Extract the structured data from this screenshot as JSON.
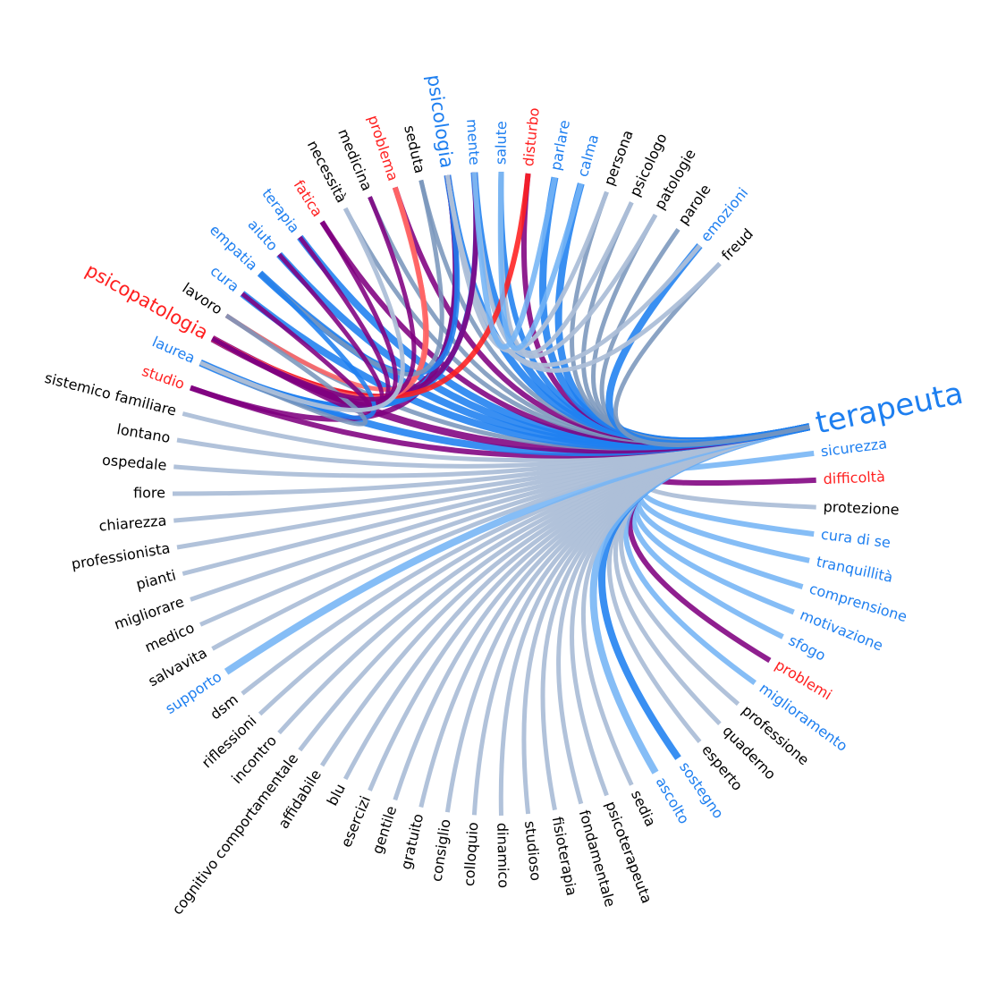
{
  "colors": {
    "positive": "#1e7ff0",
    "negative": "#ff1f1f",
    "neutral": "#000000",
    "link_light": "#adbfd8",
    "link_light_blue": "#74b4f5",
    "link_mid": "#7a96bc",
    "link_purple": "#800080",
    "link_red": "#ff6464"
  },
  "legend": [
    {
      "name": "positive",
      "color": "#1e7ff0"
    },
    {
      "name": "negative",
      "color": "#ff1f1f"
    },
    {
      "name": "neutral",
      "color": "#000000"
    }
  ],
  "chart_data": {
    "type": "chord",
    "hub": "terapeuta",
    "nodes": [
      {
        "label": "terapeuta",
        "sentiment": "positive",
        "size": "xl"
      },
      {
        "label": "sicurezza",
        "sentiment": "positive"
      },
      {
        "label": "difficoltà",
        "sentiment": "negative"
      },
      {
        "label": "protezione",
        "sentiment": "neutral"
      },
      {
        "label": "cura di se",
        "sentiment": "positive"
      },
      {
        "label": "tranquillità",
        "sentiment": "positive"
      },
      {
        "label": "comprensione",
        "sentiment": "positive"
      },
      {
        "label": "motivazione",
        "sentiment": "positive"
      },
      {
        "label": "sfogo",
        "sentiment": "positive"
      },
      {
        "label": "problemi",
        "sentiment": "negative"
      },
      {
        "label": "miglioramento",
        "sentiment": "positive"
      },
      {
        "label": "professione",
        "sentiment": "neutral"
      },
      {
        "label": "quaderno",
        "sentiment": "neutral"
      },
      {
        "label": "esperto",
        "sentiment": "neutral"
      },
      {
        "label": "sostegno",
        "sentiment": "positive"
      },
      {
        "label": "ascolto",
        "sentiment": "positive"
      },
      {
        "label": "sedia",
        "sentiment": "neutral"
      },
      {
        "label": "psicoterapeuta",
        "sentiment": "neutral"
      },
      {
        "label": "fondamentale",
        "sentiment": "neutral"
      },
      {
        "label": "fisioterapia",
        "sentiment": "neutral"
      },
      {
        "label": "studioso",
        "sentiment": "neutral"
      },
      {
        "label": "dinamico",
        "sentiment": "neutral"
      },
      {
        "label": "colloquio",
        "sentiment": "neutral"
      },
      {
        "label": "consiglio",
        "sentiment": "neutral"
      },
      {
        "label": "gratuito",
        "sentiment": "neutral"
      },
      {
        "label": "gentile",
        "sentiment": "neutral"
      },
      {
        "label": "esercizi",
        "sentiment": "neutral"
      },
      {
        "label": "blu",
        "sentiment": "neutral"
      },
      {
        "label": "affidabile",
        "sentiment": "neutral"
      },
      {
        "label": "cognitivo comportamentale",
        "sentiment": "neutral"
      },
      {
        "label": "incontro",
        "sentiment": "neutral"
      },
      {
        "label": "riflessioni",
        "sentiment": "neutral"
      },
      {
        "label": "dsm",
        "sentiment": "neutral"
      },
      {
        "label": "supporto",
        "sentiment": "positive"
      },
      {
        "label": "salvavita",
        "sentiment": "neutral"
      },
      {
        "label": "medico",
        "sentiment": "neutral"
      },
      {
        "label": "migliorare",
        "sentiment": "neutral"
      },
      {
        "label": "pianti",
        "sentiment": "neutral"
      },
      {
        "label": "professionista",
        "sentiment": "neutral"
      },
      {
        "label": "chiarezza",
        "sentiment": "neutral"
      },
      {
        "label": "fiore",
        "sentiment": "neutral"
      },
      {
        "label": "ospedale",
        "sentiment": "neutral"
      },
      {
        "label": "lontano",
        "sentiment": "neutral"
      },
      {
        "label": "sistemico familiare",
        "sentiment": "neutral"
      },
      {
        "label": "studio",
        "sentiment": "negative"
      },
      {
        "label": "laurea",
        "sentiment": "positive"
      },
      {
        "label": "psicopatologia",
        "sentiment": "negative",
        "size": "l"
      },
      {
        "label": "lavoro",
        "sentiment": "neutral"
      },
      {
        "label": "cura",
        "sentiment": "positive"
      },
      {
        "label": "empatia",
        "sentiment": "positive"
      },
      {
        "label": "aiuto",
        "sentiment": "positive"
      },
      {
        "label": "terapia",
        "sentiment": "positive"
      },
      {
        "label": "fatica",
        "sentiment": "negative"
      },
      {
        "label": "necessità",
        "sentiment": "neutral"
      },
      {
        "label": "medicina",
        "sentiment": "neutral"
      },
      {
        "label": "problema",
        "sentiment": "negative"
      },
      {
        "label": "seduta",
        "sentiment": "neutral"
      },
      {
        "label": "psicologia",
        "sentiment": "positive",
        "size": "l"
      },
      {
        "label": "mente",
        "sentiment": "positive"
      },
      {
        "label": "salute",
        "sentiment": "positive"
      },
      {
        "label": "disturbo",
        "sentiment": "negative"
      },
      {
        "label": "parlare",
        "sentiment": "positive"
      },
      {
        "label": "calma",
        "sentiment": "positive"
      },
      {
        "label": "persona",
        "sentiment": "neutral"
      },
      {
        "label": "psicologo",
        "sentiment": "neutral"
      },
      {
        "label": "patologie",
        "sentiment": "neutral"
      },
      {
        "label": "parole",
        "sentiment": "neutral"
      },
      {
        "label": "emozioni",
        "sentiment": "positive"
      },
      {
        "label": "freud",
        "sentiment": "neutral"
      }
    ],
    "links": [
      {
        "source": "terapeuta",
        "target": "sicurezza",
        "color": "link_light_blue",
        "weight": 3
      },
      {
        "source": "terapeuta",
        "target": "difficoltà",
        "color": "link_purple",
        "weight": 3
      },
      {
        "source": "terapeuta",
        "target": "protezione",
        "color": "link_light",
        "weight": 2
      },
      {
        "source": "terapeuta",
        "target": "cura di se",
        "color": "link_light_blue",
        "weight": 3
      },
      {
        "source": "terapeuta",
        "target": "tranquillità",
        "color": "link_light_blue",
        "weight": 3
      },
      {
        "source": "terapeuta",
        "target": "comprensione",
        "color": "link_light_blue",
        "weight": 3
      },
      {
        "source": "terapeuta",
        "target": "motivazione",
        "color": "link_light_blue",
        "weight": 3
      },
      {
        "source": "terapeuta",
        "target": "sfogo",
        "color": "link_light_blue",
        "weight": 3
      },
      {
        "source": "terapeuta",
        "target": "problemi",
        "color": "link_purple",
        "weight": 3
      },
      {
        "source": "terapeuta",
        "target": "miglioramento",
        "color": "link_light_blue",
        "weight": 3
      },
      {
        "source": "terapeuta",
        "target": "professione",
        "color": "link_light",
        "weight": 2
      },
      {
        "source": "terapeuta",
        "target": "quaderno",
        "color": "link_light",
        "weight": 2
      },
      {
        "source": "terapeuta",
        "target": "esperto",
        "color": "link_light",
        "weight": 2
      },
      {
        "source": "terapeuta",
        "target": "sostegno",
        "color": "positive",
        "weight": 4
      },
      {
        "source": "terapeuta",
        "target": "ascolto",
        "color": "link_light_blue",
        "weight": 4
      },
      {
        "source": "terapeuta",
        "target": "sedia",
        "color": "link_light",
        "weight": 2
      },
      {
        "source": "terapeuta",
        "target": "psicoterapeuta",
        "color": "link_light",
        "weight": 2
      },
      {
        "source": "terapeuta",
        "target": "fondamentale",
        "color": "link_light",
        "weight": 2
      },
      {
        "source": "terapeuta",
        "target": "fisioterapia",
        "color": "link_light",
        "weight": 2
      },
      {
        "source": "terapeuta",
        "target": "studioso",
        "color": "link_light",
        "weight": 2
      },
      {
        "source": "terapeuta",
        "target": "dinamico",
        "color": "link_light",
        "weight": 2
      },
      {
        "source": "terapeuta",
        "target": "colloquio",
        "color": "link_light",
        "weight": 2
      },
      {
        "source": "terapeuta",
        "target": "consiglio",
        "color": "link_light",
        "weight": 2
      },
      {
        "source": "terapeuta",
        "target": "gratuito",
        "color": "link_light",
        "weight": 2
      },
      {
        "source": "terapeuta",
        "target": "gentile",
        "color": "link_light",
        "weight": 2
      },
      {
        "source": "terapeuta",
        "target": "esercizi",
        "color": "link_light",
        "weight": 2
      },
      {
        "source": "terapeuta",
        "target": "blu",
        "color": "link_light",
        "weight": 2
      },
      {
        "source": "terapeuta",
        "target": "affidabile",
        "color": "link_light",
        "weight": 2
      },
      {
        "source": "terapeuta",
        "target": "cognitivo comportamentale",
        "color": "link_light",
        "weight": 2
      },
      {
        "source": "terapeuta",
        "target": "incontro",
        "color": "link_light",
        "weight": 2
      },
      {
        "source": "terapeuta",
        "target": "riflessioni",
        "color": "link_light",
        "weight": 2
      },
      {
        "source": "terapeuta",
        "target": "dsm",
        "color": "link_light",
        "weight": 2
      },
      {
        "source": "terapeuta",
        "target": "supporto",
        "color": "link_light_blue",
        "weight": 4
      },
      {
        "source": "terapeuta",
        "target": "salvavita",
        "color": "link_light",
        "weight": 2
      },
      {
        "source": "terapeuta",
        "target": "medico",
        "color": "link_light",
        "weight": 2
      },
      {
        "source": "terapeuta",
        "target": "migliorare",
        "color": "link_light",
        "weight": 2
      },
      {
        "source": "terapeuta",
        "target": "pianti",
        "color": "link_light",
        "weight": 2
      },
      {
        "source": "terapeuta",
        "target": "professionista",
        "color": "link_light",
        "weight": 2
      },
      {
        "source": "terapeuta",
        "target": "chiarezza",
        "color": "link_light",
        "weight": 2
      },
      {
        "source": "terapeuta",
        "target": "fiore",
        "color": "link_light",
        "weight": 2
      },
      {
        "source": "terapeuta",
        "target": "ospedale",
        "color": "link_light",
        "weight": 2
      },
      {
        "source": "terapeuta",
        "target": "lontano",
        "color": "link_light",
        "weight": 2
      },
      {
        "source": "terapeuta",
        "target": "sistemico familiare",
        "color": "link_light",
        "weight": 2
      },
      {
        "source": "terapeuta",
        "target": "studio",
        "color": "link_purple",
        "weight": 3
      },
      {
        "source": "terapeuta",
        "target": "laurea",
        "color": "positive",
        "weight": 4
      },
      {
        "source": "terapeuta",
        "target": "psicopatologia",
        "color": "link_purple",
        "weight": 4
      },
      {
        "source": "terapeuta",
        "target": "lavoro",
        "color": "link_mid",
        "weight": 2
      },
      {
        "source": "terapeuta",
        "target": "cura",
        "color": "positive",
        "weight": 4
      },
      {
        "source": "terapeuta",
        "target": "empatia",
        "color": "positive",
        "weight": 4
      },
      {
        "source": "terapeuta",
        "target": "aiuto",
        "color": "positive",
        "weight": 4
      },
      {
        "source": "terapeuta",
        "target": "terapia",
        "color": "positive",
        "weight": 4
      },
      {
        "source": "terapeuta",
        "target": "fatica",
        "color": "link_purple",
        "weight": 3
      },
      {
        "source": "terapeuta",
        "target": "necessità",
        "color": "link_mid",
        "weight": 2
      },
      {
        "source": "terapeuta",
        "target": "medicina",
        "color": "link_mid",
        "weight": 2
      },
      {
        "source": "terapeuta",
        "target": "problema",
        "color": "link_purple",
        "weight": 3
      },
      {
        "source": "terapeuta",
        "target": "seduta",
        "color": "link_mid",
        "weight": 2
      },
      {
        "source": "terapeuta",
        "target": "psicologia",
        "color": "positive",
        "weight": 4
      },
      {
        "source": "terapeuta",
        "target": "mente",
        "color": "positive",
        "weight": 4
      },
      {
        "source": "terapeuta",
        "target": "salute",
        "color": "positive",
        "weight": 3
      },
      {
        "source": "terapeuta",
        "target": "disturbo",
        "color": "link_purple",
        "weight": 3
      },
      {
        "source": "terapeuta",
        "target": "parlare",
        "color": "positive",
        "weight": 4
      },
      {
        "source": "terapeuta",
        "target": "calma",
        "color": "positive",
        "weight": 4
      },
      {
        "source": "terapeuta",
        "target": "persona",
        "color": "link_mid",
        "weight": 2
      },
      {
        "source": "terapeuta",
        "target": "psicologo",
        "color": "link_mid",
        "weight": 2
      },
      {
        "source": "terapeuta",
        "target": "patologie",
        "color": "link_mid",
        "weight": 2
      },
      {
        "source": "terapeuta",
        "target": "parole",
        "color": "link_mid",
        "weight": 2
      },
      {
        "source": "terapeuta",
        "target": "emozioni",
        "color": "positive",
        "weight": 4
      },
      {
        "source": "terapeuta",
        "target": "freud",
        "color": "link_mid",
        "weight": 2
      },
      {
        "source": "psicologia",
        "target": "psicopatologia",
        "color": "link_purple",
        "weight": 3
      },
      {
        "source": "psicologia",
        "target": "laurea",
        "color": "positive",
        "weight": 3
      },
      {
        "source": "psicologia",
        "target": "studio",
        "color": "link_purple",
        "weight": 3
      },
      {
        "source": "psicologia",
        "target": "empatia",
        "color": "positive",
        "weight": 3
      },
      {
        "source": "psicologia",
        "target": "persona",
        "color": "link_light",
        "weight": 2
      },
      {
        "source": "psicologia",
        "target": "emozioni",
        "color": "link_light",
        "weight": 2
      },
      {
        "source": "psicologia",
        "target": "freud",
        "color": "link_light",
        "weight": 2
      },
      {
        "source": "mente",
        "target": "laurea",
        "color": "positive",
        "weight": 3
      },
      {
        "source": "mente",
        "target": "psicopatologia",
        "color": "link_purple",
        "weight": 3
      },
      {
        "source": "mente",
        "target": "patologie",
        "color": "link_light",
        "weight": 2
      },
      {
        "source": "salute",
        "target": "psicologo",
        "color": "link_light",
        "weight": 2
      },
      {
        "source": "disturbo",
        "target": "psicopatologia",
        "color": "negative",
        "weight": 3
      },
      {
        "source": "problema",
        "target": "psicopatologia",
        "color": "link_red",
        "weight": 3
      },
      {
        "source": "problema",
        "target": "lavoro",
        "color": "link_red",
        "weight": 2
      },
      {
        "source": "seduta",
        "target": "empatia",
        "color": "link_mid",
        "weight": 2
      },
      {
        "source": "parlare",
        "target": "mente",
        "color": "link_light_blue",
        "weight": 3
      },
      {
        "source": "calma",
        "target": "salute",
        "color": "link_light_blue",
        "weight": 3
      },
      {
        "source": "fatica",
        "target": "psicopatologia",
        "color": "link_purple",
        "weight": 2
      },
      {
        "source": "terapia",
        "target": "psicopatologia",
        "color": "link_purple",
        "weight": 2
      },
      {
        "source": "aiuto",
        "target": "psicopatologia",
        "color": "link_purple",
        "weight": 2
      },
      {
        "source": "cura",
        "target": "psicopatologia",
        "color": "link_purple",
        "weight": 2
      },
      {
        "source": "empatia",
        "target": "laurea",
        "color": "positive",
        "weight": 2
      },
      {
        "source": "lavoro",
        "target": "laurea",
        "color": "link_mid",
        "weight": 2
      },
      {
        "source": "medicina",
        "target": "psicopatologia",
        "color": "link_purple",
        "weight": 2
      },
      {
        "source": "necessità",
        "target": "laurea",
        "color": "link_light",
        "weight": 2
      }
    ]
  }
}
